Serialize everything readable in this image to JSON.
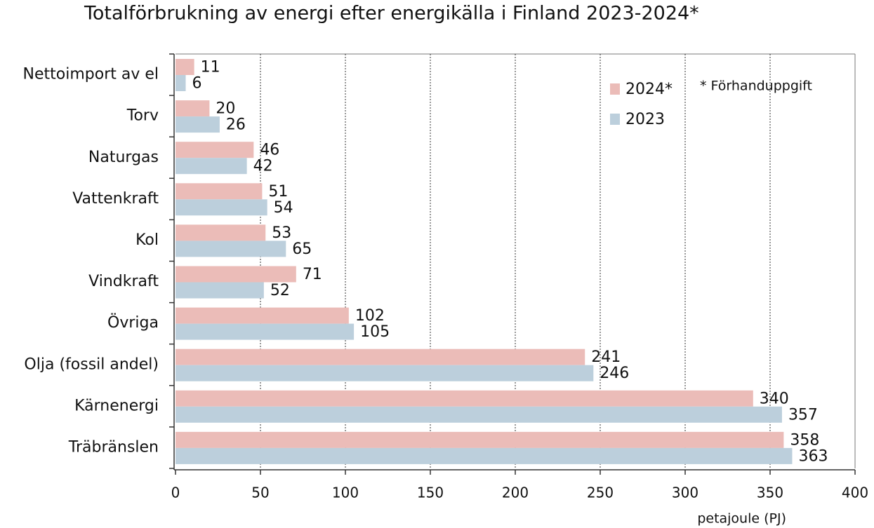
{
  "chart_data": {
    "type": "bar",
    "orientation": "horizontal",
    "title": "Totalförbrukning av energi efter energikälla i Finland 2023-2024*",
    "x_label": "petajoule (PJ)",
    "annotation": "* Förhanduppgift",
    "categories": [
      "Nettoimport av el",
      "Torv",
      "Naturgas",
      "Vattenkraft",
      "Kol",
      "Vindkraft",
      "Övriga",
      "Olja (fossil andel)",
      "Kärnenergi",
      "Träbränslen"
    ],
    "series": [
      {
        "name": "2024*",
        "color": "#ebbcb8",
        "values": [
          11,
          20,
          46,
          51,
          53,
          71,
          102,
          241,
          340,
          358
        ]
      },
      {
        "name": "2023",
        "color": "#bccfdc",
        "values": [
          6,
          26,
          42,
          54,
          65,
          52,
          105,
          246,
          357,
          363
        ]
      }
    ],
    "xlim": [
      0,
      400
    ],
    "xticks": [
      0,
      50,
      100,
      150,
      200,
      250,
      300,
      350,
      400
    ],
    "grid": true,
    "legend": "upper right"
  }
}
